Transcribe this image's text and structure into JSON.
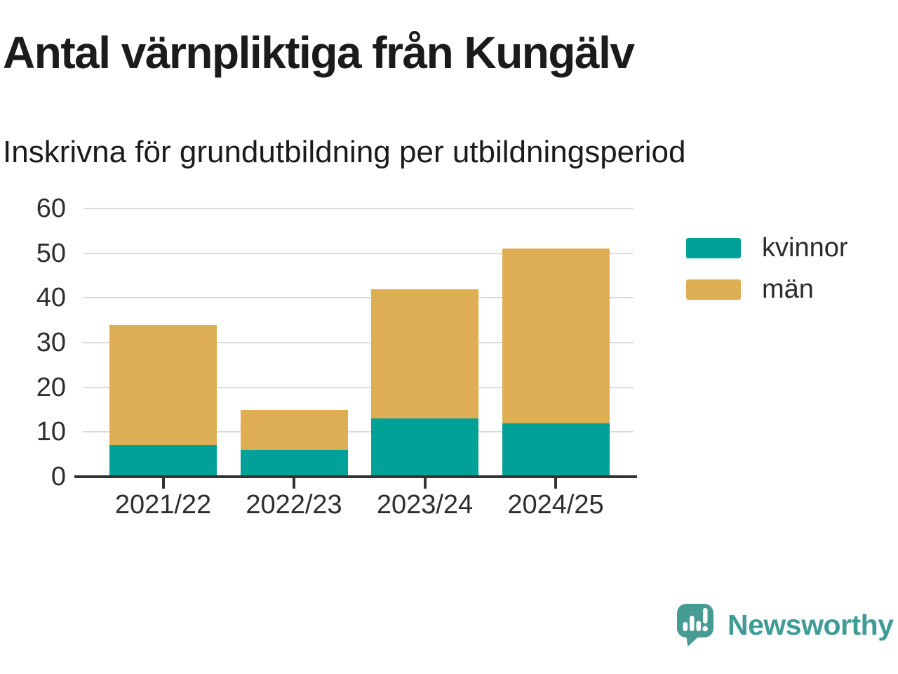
{
  "header": {
    "title": "Antal värnpliktiga från Kungälv",
    "subtitle": "Inskrivna för grundutbildning per utbildningsperiod"
  },
  "chart_data": {
    "type": "bar",
    "stacked": true,
    "title": "Antal värnpliktiga från Kungälv",
    "subtitle": "Inskrivna för grundutbildning per utbildningsperiod",
    "categories": [
      "2021/22",
      "2022/23",
      "2023/24",
      "2024/25"
    ],
    "series": [
      {
        "name": "kvinnor",
        "color": "#00a298",
        "values": [
          7,
          6,
          13,
          12
        ]
      },
      {
        "name": "män",
        "color": "#deae55",
        "values": [
          27,
          9,
          29,
          39
        ]
      }
    ],
    "stack_totals": [
      34,
      15,
      42,
      51
    ],
    "xlabel": "",
    "ylabel": "",
    "ylim": [
      0,
      60
    ],
    "yticks": [
      0,
      10,
      20,
      30,
      40,
      50,
      60
    ],
    "grid": "horizontal",
    "legend_position": "right"
  },
  "legend": {
    "items": [
      {
        "label": "kvinnor",
        "color": "#00a298"
      },
      {
        "label": "män",
        "color": "#deae55"
      }
    ]
  },
  "branding": {
    "logo_text": "Newsworthy",
    "logo_text_color": "#3f9c95",
    "icon_color": "#479b95",
    "icon_name": "newsworthy-speech-bubble-bar-chart-icon"
  },
  "colors": {
    "title_text": "#1b1b1b",
    "axis_text": "#2e2e2e",
    "gridline": "#dbdbdb",
    "baseline": "#333333",
    "background": "#ffffff"
  }
}
